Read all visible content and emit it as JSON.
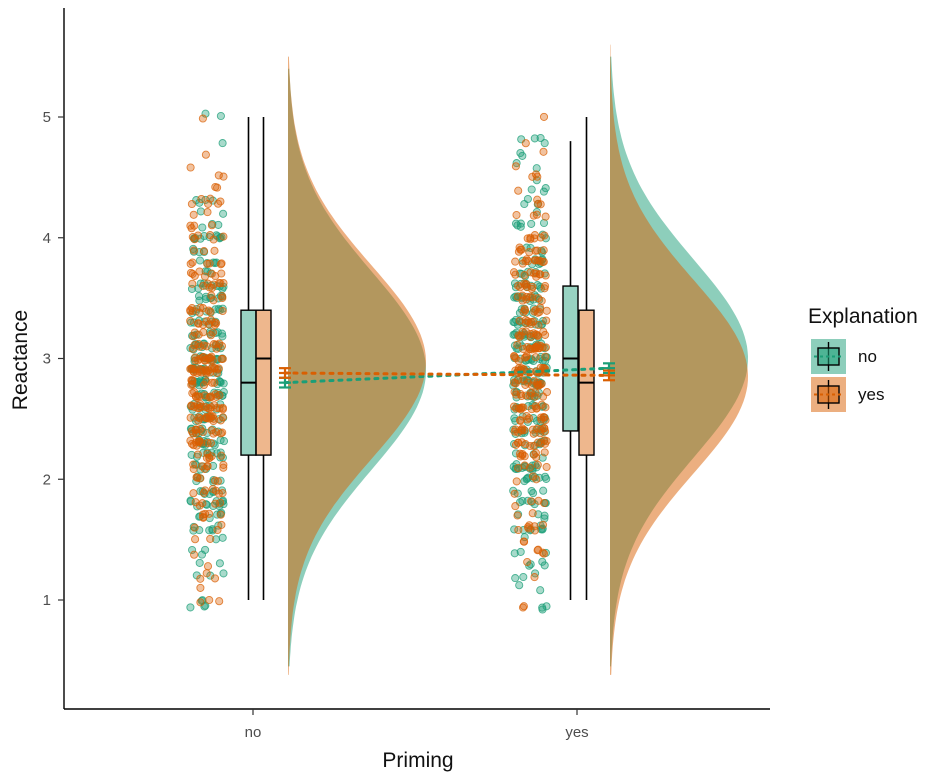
{
  "chart_data": {
    "type": "raincloud",
    "xlabel": "Priming",
    "ylabel": "Reactance",
    "categories": [
      "no",
      "yes"
    ],
    "ylim": [
      0.35,
      5.85
    ],
    "yticks": [
      1,
      2,
      3,
      4,
      5
    ],
    "legend": {
      "title": "Explanation",
      "position": "right",
      "entries": [
        {
          "label": "no",
          "color": "#1b9e77"
        },
        {
          "label": "yes",
          "color": "#d95f02"
        }
      ]
    },
    "series": [
      {
        "name": "no",
        "color": "#1b9e77",
        "boxplots": [
          {
            "category": "no",
            "min": 1.0,
            "q1": 2.2,
            "median": 2.8,
            "q3": 3.4,
            "max": 5.0
          },
          {
            "category": "yes",
            "min": 1.0,
            "q1": 2.4,
            "median": 3.0,
            "q3": 3.6,
            "max": 4.8
          }
        ],
        "means": [
          {
            "category": "no",
            "mean": 2.8,
            "ci": [
              2.76,
              2.84
            ]
          },
          {
            "category": "yes",
            "mean": 2.92,
            "ci": [
              2.88,
              2.96
            ]
          }
        ]
      },
      {
        "name": "yes",
        "color": "#d95f02",
        "boxplots": [
          {
            "category": "no",
            "min": 1.0,
            "q1": 2.2,
            "median": 3.0,
            "q3": 3.4,
            "max": 5.0
          },
          {
            "category": "yes",
            "min": 1.0,
            "q1": 2.2,
            "median": 2.8,
            "q3": 3.4,
            "max": 5.0
          }
        ],
        "means": [
          {
            "category": "no",
            "mean": 2.88,
            "ci": [
              2.84,
              2.92
            ]
          },
          {
            "category": "yes",
            "mean": 2.86,
            "ci": [
              2.82,
              2.9
            ]
          }
        ]
      }
    ],
    "density": {
      "no": {
        "mode": 2.95,
        "range": [
          0.4,
          5.5
        ]
      },
      "yes": {
        "mode": 2.9,
        "range": [
          0.4,
          5.6
        ]
      }
    },
    "grid": false
  }
}
